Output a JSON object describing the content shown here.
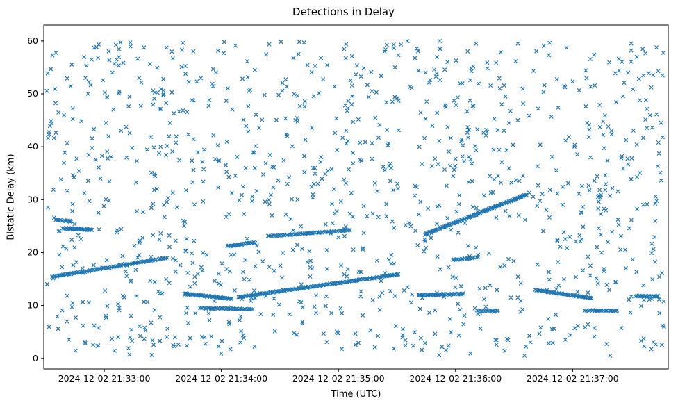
{
  "chart_data": {
    "type": "scatter",
    "title": "Detections in Delay",
    "xlabel": "Time (UTC)",
    "ylabel": "Bistatic Delay (km)",
    "marker": "x",
    "marker_color": "#1f77b4",
    "axis_color": "#000000",
    "grid": false,
    "legend": "none",
    "x_axis_note": "seconds relative to plot left edge (2024-12-02 21:32:29 UTC)",
    "xlim": [
      0,
      320
    ],
    "ylim": [
      -2,
      63
    ],
    "x_ticks": [
      {
        "t": 31,
        "label": "2024-12-02 21:33:00"
      },
      {
        "t": 91,
        "label": "2024-12-02 21:34:00"
      },
      {
        "t": 151,
        "label": "2024-12-02 21:35:00"
      },
      {
        "t": 211,
        "label": "2024-12-02 21:36:00"
      },
      {
        "t": 271,
        "label": "2024-12-02 21:37:00"
      }
    ],
    "y_ticks": [
      0,
      10,
      20,
      30,
      40,
      50,
      60
    ],
    "background_scatter": {
      "description": "uniform clutter detections across whole plot",
      "seed": 42,
      "n": 1150,
      "t_range": [
        1,
        319
      ],
      "y_range": [
        0.5,
        60
      ]
    },
    "tracks": [
      {
        "name": "rising-track-left",
        "t0": 4,
        "t1": 63,
        "y0": 15.4,
        "y1": 19.0,
        "n": 95
      },
      {
        "name": "flat-track-24km-left",
        "t0": 10,
        "t1": 25,
        "y0": 24.6,
        "y1": 24.3,
        "n": 40
      },
      {
        "name": "flat-track-26km-left",
        "t0": 6,
        "t1": 14,
        "y0": 26.2,
        "y1": 25.9,
        "n": 15
      },
      {
        "name": "descending-track-12km",
        "t0": 72,
        "t1": 96,
        "y0": 12.2,
        "y1": 11.3,
        "n": 55
      },
      {
        "name": "flat-track-9km",
        "t0": 80,
        "t1": 107,
        "y0": 9.5,
        "y1": 9.3,
        "n": 40
      },
      {
        "name": "short-rising-21km",
        "t0": 94,
        "t1": 108,
        "y0": 21.2,
        "y1": 21.9,
        "n": 30
      },
      {
        "name": "slow-rising-23km",
        "t0": 115,
        "t1": 157,
        "y0": 23.1,
        "y1": 24.2,
        "n": 65
      },
      {
        "name": "long-rising-track-center",
        "t0": 100,
        "t1": 182,
        "y0": 11.6,
        "y1": 15.9,
        "n": 150
      },
      {
        "name": "steep-rising-track-right",
        "t0": 195,
        "t1": 247,
        "y0": 23.4,
        "y1": 30.9,
        "n": 120
      },
      {
        "name": "flat-track-12km-right",
        "t0": 192,
        "t1": 215,
        "y0": 11.9,
        "y1": 12.2,
        "n": 45
      },
      {
        "name": "cluster-9km-right",
        "t0": 222,
        "t1": 233,
        "y0": 9.0,
        "y1": 9.0,
        "n": 16
      },
      {
        "name": "short-track-19km",
        "t0": 210,
        "t1": 220,
        "y0": 18.6,
        "y1": 19.0,
        "n": 18
      },
      {
        "name": "descending-track-13km",
        "t0": 252,
        "t1": 281,
        "y0": 12.9,
        "y1": 11.4,
        "n": 55
      },
      {
        "name": "flat-track-9km-far-right",
        "t0": 277,
        "t1": 294,
        "y0": 9.1,
        "y1": 9.0,
        "n": 28
      },
      {
        "name": "flat-track-12km-edge",
        "t0": 303,
        "t1": 315,
        "y0": 11.8,
        "y1": 11.7,
        "n": 22
      }
    ]
  }
}
